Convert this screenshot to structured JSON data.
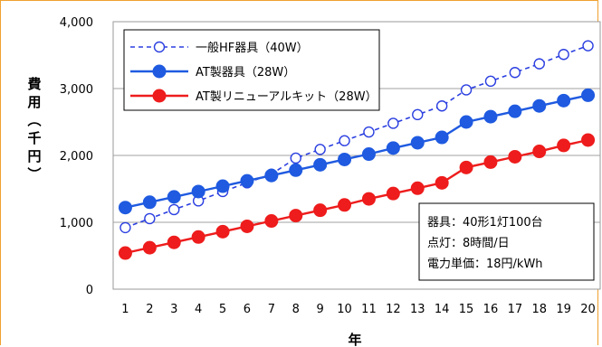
{
  "chart_data": {
    "type": "line",
    "title": "",
    "xlabel": "年",
    "ylabel": "費用（千円）",
    "x": [
      1,
      2,
      3,
      4,
      5,
      6,
      7,
      8,
      9,
      10,
      11,
      12,
      13,
      14,
      15,
      16,
      17,
      18,
      19,
      20
    ],
    "xlim": [
      0.5,
      20.5
    ],
    "ylim": [
      0,
      4000
    ],
    "yticks": [
      "0",
      "1,000",
      "2,000",
      "3,000",
      "4,000"
    ],
    "ytick_values": [
      0,
      1000,
      2000,
      3000,
      4000
    ],
    "grid": "horizontal",
    "legend_position": "top-left",
    "series": [
      {
        "name": "一般HF器具（40W）",
        "color": "#2b3fe0",
        "style": "dashed-open-circle",
        "values": [
          920,
          1055,
          1190,
          1320,
          1460,
          1590,
          1720,
          1960,
          2090,
          2220,
          2350,
          2480,
          2610,
          2740,
          2980,
          3110,
          3240,
          3370,
          3510,
          3640
        ]
      },
      {
        "name": "AT製器具（28W）",
        "color": "#1f5ae0",
        "style": "solid-filled-circle",
        "values": [
          1220,
          1300,
          1380,
          1460,
          1540,
          1620,
          1700,
          1780,
          1860,
          1940,
          2020,
          2110,
          2190,
          2270,
          2500,
          2580,
          2660,
          2740,
          2820,
          2900
        ]
      },
      {
        "name": "AT製リニューアルキット（28W）",
        "color": "#ee1c1c",
        "style": "solid-filled-circle",
        "values": [
          540,
          620,
          700,
          780,
          860,
          940,
          1020,
          1100,
          1180,
          1260,
          1350,
          1430,
          1510,
          1590,
          1820,
          1900,
          1980,
          2060,
          2150,
          2230
        ]
      }
    ],
    "annotation": [
      "器具：40形1灯100台",
      "点灯：8時間/日",
      "電力単価：18円/kWh"
    ]
  }
}
